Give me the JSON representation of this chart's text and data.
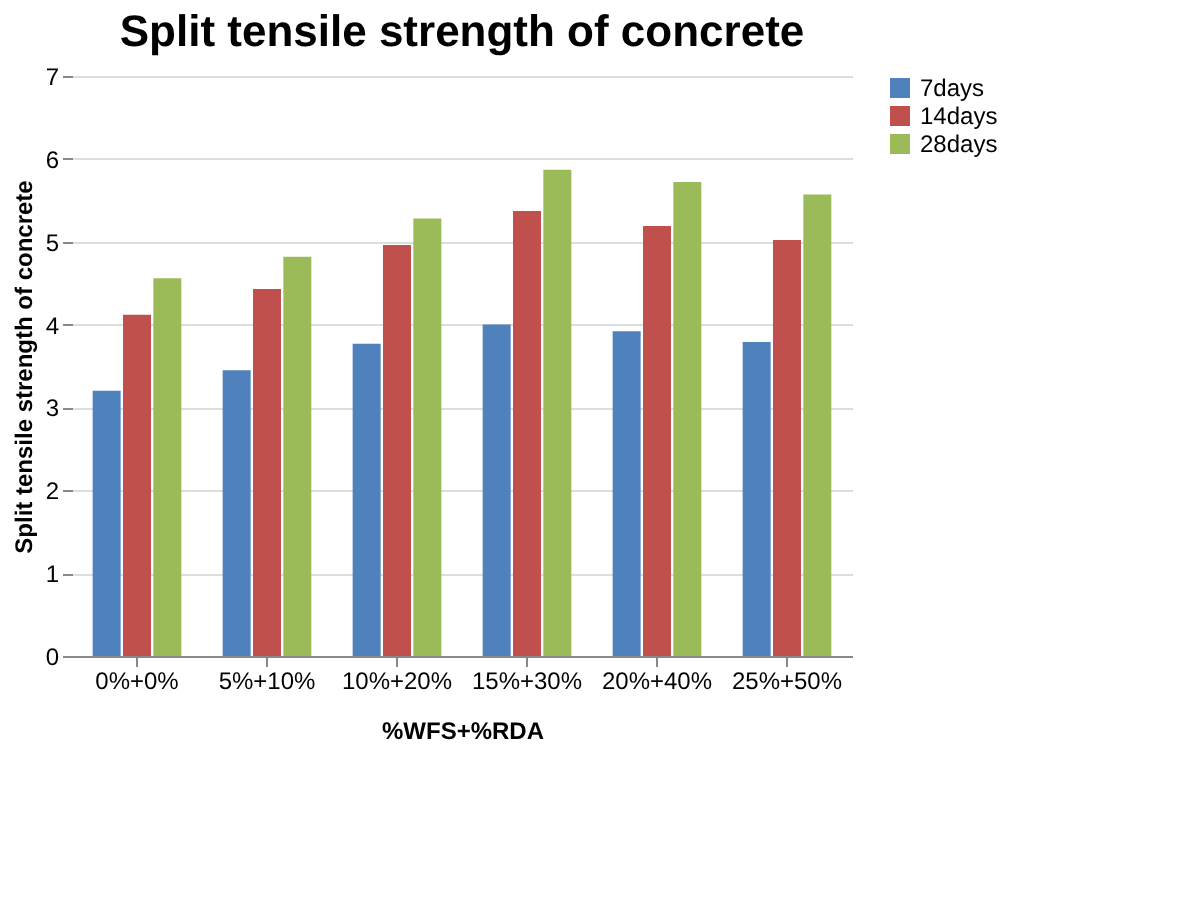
{
  "chart_data": {
    "type": "bar",
    "title": "Split tensile strength of concrete",
    "xlabel": "%WFS+%RDA",
    "ylabel": "Split tensile strength of concrete",
    "categories": [
      "0%+0%",
      "5%+10%",
      "10%+20%",
      "15%+30%",
      "20%+40%",
      "25%+50%"
    ],
    "series": [
      {
        "name": "7days",
        "color": "#4f81bd",
        "values": [
          3.2,
          3.45,
          3.77,
          4.0,
          3.92,
          3.79
        ]
      },
      {
        "name": "14days",
        "color": "#c0504d",
        "values": [
          4.12,
          4.43,
          4.96,
          5.37,
          5.19,
          5.02
        ]
      },
      {
        "name": "28days",
        "color": "#9bbb59",
        "values": [
          4.56,
          4.82,
          5.28,
          5.87,
          5.72,
          5.57
        ]
      }
    ],
    "ylim": [
      0,
      7
    ],
    "yticks": [
      0,
      1,
      2,
      3,
      4,
      5,
      6,
      7
    ],
    "grid": "y",
    "legend": "right"
  }
}
